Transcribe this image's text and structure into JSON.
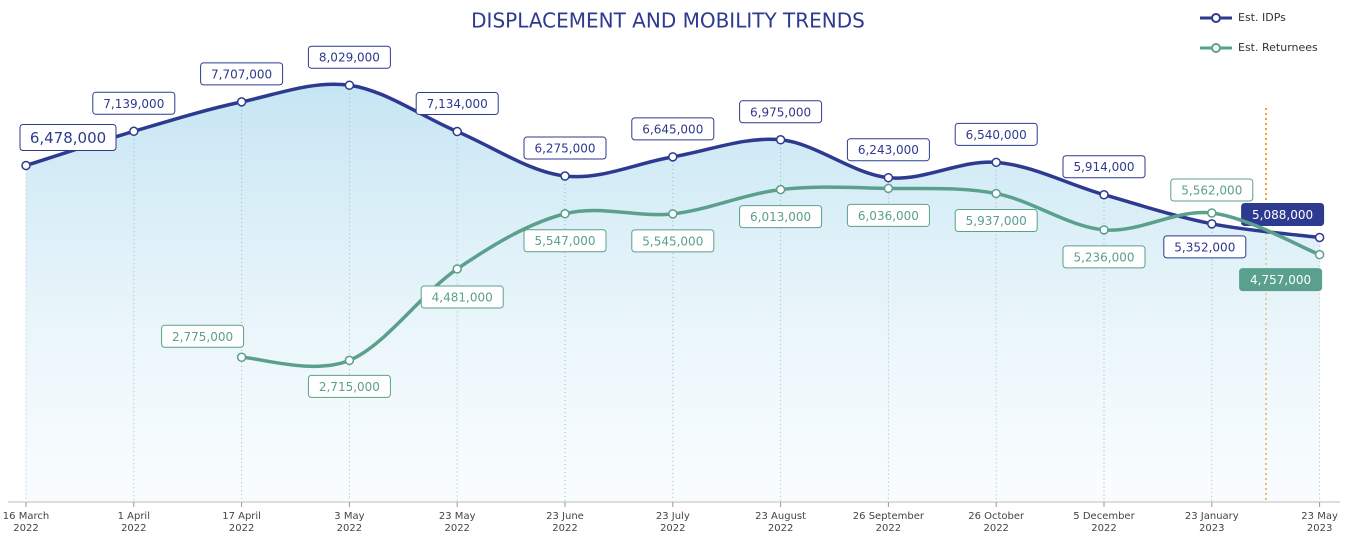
{
  "chart_data": {
    "type": "line",
    "title": "DISPLACEMENT AND MOBILITY TRENDS",
    "categories": [
      "16 March 2022",
      "1 April 2022",
      "17 April 2022",
      "3 May 2022",
      "23 May 2022",
      "23 June 2022",
      "23 July 2022",
      "23 August 2022",
      "26 September 2022",
      "26 October 2022",
      "5 December 2022",
      "23 January 2023",
      "23 May 2023"
    ],
    "series": [
      {
        "name": "Est. IDPs",
        "color": "#2e3a8f",
        "values": [
          6478000,
          7139000,
          7707000,
          8029000,
          7134000,
          6275000,
          6645000,
          6975000,
          6243000,
          6540000,
          5914000,
          5352000,
          5088000
        ],
        "value_labels": [
          "6,478,000",
          "7,139,000",
          "7,707,000",
          "8,029,000",
          "7,134,000",
          "6,275,000",
          "6,645,000",
          "6,975,000",
          "6,243,000",
          "6,540,000",
          "5,914,000",
          "5,352,000",
          "5,088,000"
        ]
      },
      {
        "name": "Est. Returnees",
        "color": "#5aa08c",
        "values": [
          null,
          null,
          2775000,
          2715000,
          4481000,
          5547000,
          5545000,
          6013000,
          6036000,
          5937000,
          5236000,
          5562000,
          4757000
        ],
        "value_labels": [
          null,
          null,
          "2,775,000",
          "2,715,000",
          "4,481,000",
          "5,547,000",
          "5,545,000",
          "6,013,000",
          "6,036,000",
          "5,937,000",
          "5,236,000",
          "5,562,000",
          "4,757,000"
        ]
      }
    ],
    "ylim": [
      0,
      8400000
    ],
    "legend": "top-right"
  }
}
